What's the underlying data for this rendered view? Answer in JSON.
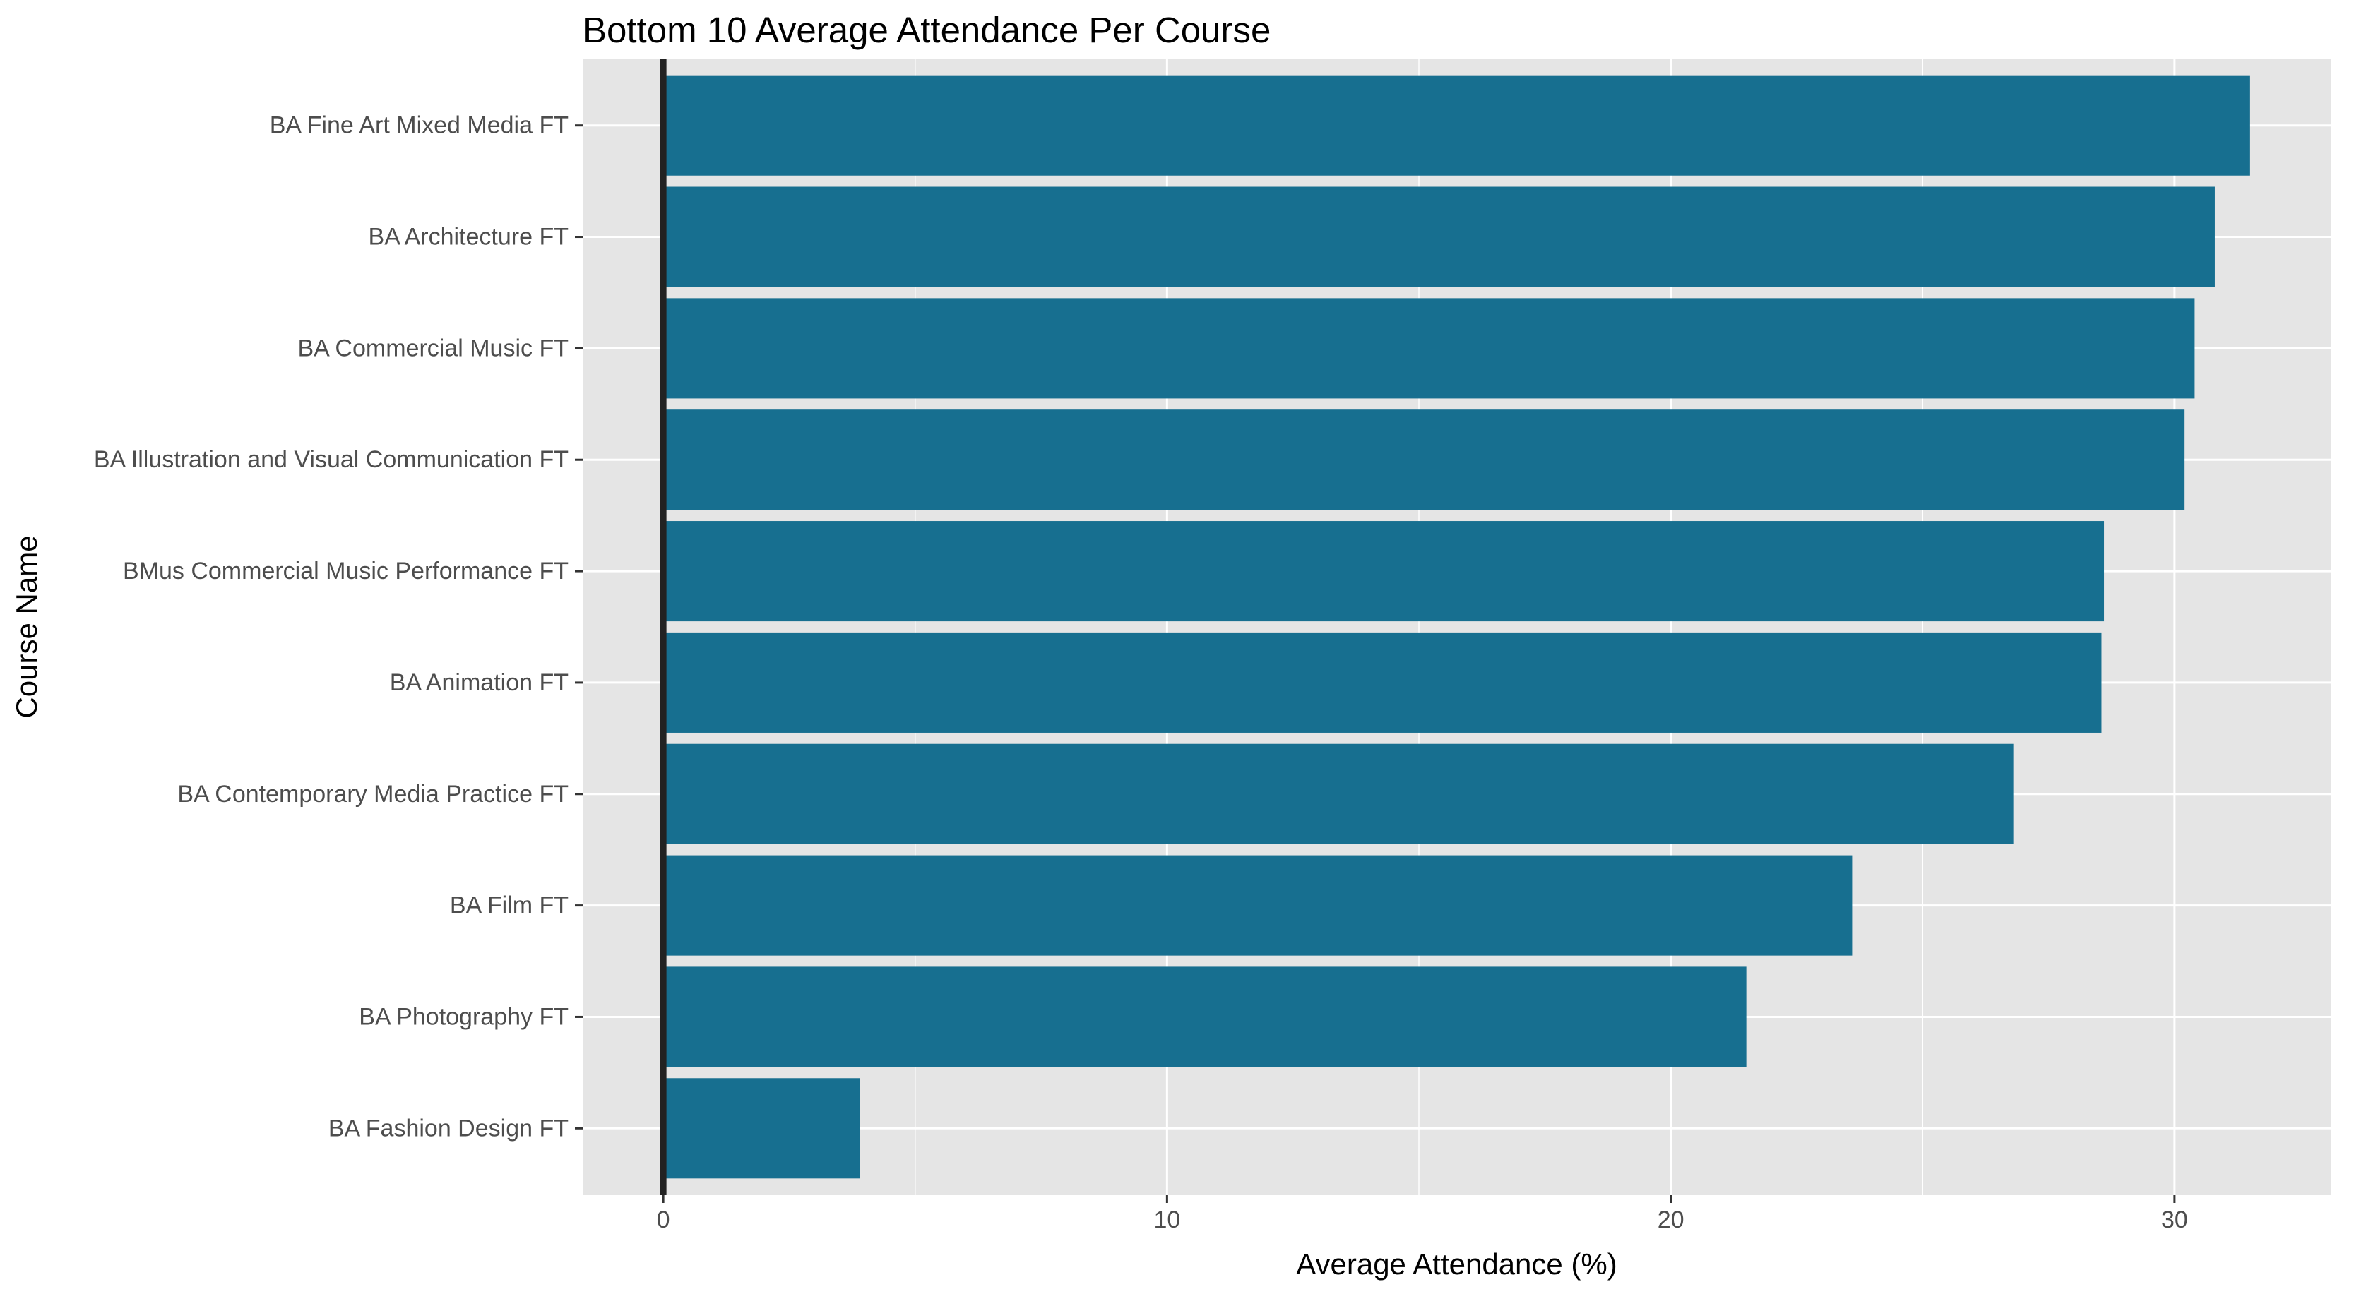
{
  "chart_data": {
    "type": "bar",
    "orientation": "horizontal",
    "title": "Bottom 10 Average Attendance Per Course",
    "xlabel": "Average Attendance (%)",
    "ylabel": "Course Name",
    "categories": [
      "BA Fine Art Mixed Media FT",
      "BA Architecture FT",
      "BA Commercial Music FT",
      "BA Illustration and Visual Communication FT",
      "BMus Commercial Music Performance FT",
      "BA Animation FT",
      "BA Contemporary Media Practice FT",
      "BA Film FT",
      "BA Photography FT",
      "BA Fashion Design FT"
    ],
    "values": [
      31.5,
      30.8,
      30.4,
      30.2,
      28.6,
      28.55,
      26.8,
      23.6,
      21.5,
      3.9
    ],
    "xlim": [
      -1.6,
      33.1
    ],
    "xticks": [
      0,
      10,
      20,
      30
    ],
    "xtick_labels": [
      "0",
      "10",
      "20",
      "30"
    ],
    "grid": true,
    "colors": {
      "bar": "#176f90",
      "panel": "#e5e5e5",
      "grid": "#ffffff",
      "zero_line": "#222222"
    }
  }
}
